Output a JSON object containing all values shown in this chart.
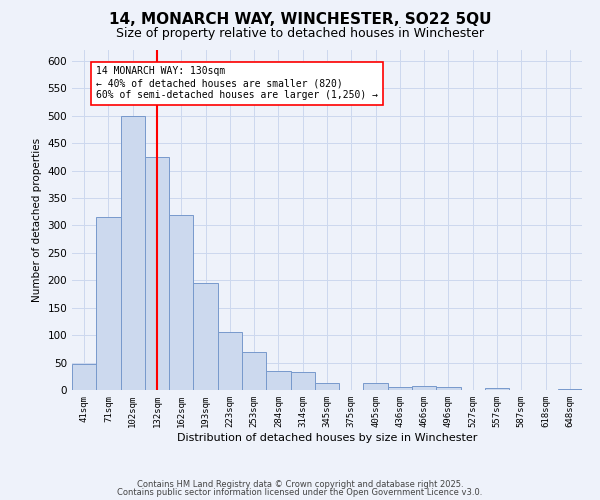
{
  "title": "14, MONARCH WAY, WINCHESTER, SO22 5QU",
  "subtitle": "Size of property relative to detached houses in Winchester",
  "xlabel": "Distribution of detached houses by size in Winchester",
  "ylabel": "Number of detached properties",
  "bar_labels": [
    "41sqm",
    "71sqm",
    "102sqm",
    "132sqm",
    "162sqm",
    "193sqm",
    "223sqm",
    "253sqm",
    "284sqm",
    "314sqm",
    "345sqm",
    "375sqm",
    "405sqm",
    "436sqm",
    "466sqm",
    "496sqm",
    "527sqm",
    "557sqm",
    "587sqm",
    "618sqm",
    "648sqm"
  ],
  "bar_values": [
    47,
    315,
    500,
    425,
    320,
    195,
    105,
    70,
    35,
    32,
    13,
    0,
    13,
    5,
    8,
    5,
    0,
    3,
    0,
    0,
    2
  ],
  "bar_color": "#ccd9ee",
  "bar_edge_color": "#7799cc",
  "vline_x": 3,
  "vline_color": "red",
  "annotation_text": "14 MONARCH WAY: 130sqm\n← 40% of detached houses are smaller (820)\n60% of semi-detached houses are larger (1,250) →",
  "annotation_box_color": "white",
  "annotation_box_edge": "red",
  "ylim": [
    0,
    620
  ],
  "yticks": [
    0,
    50,
    100,
    150,
    200,
    250,
    300,
    350,
    400,
    450,
    500,
    550,
    600
  ],
  "footer_line1": "Contains HM Land Registry data © Crown copyright and database right 2025.",
  "footer_line2": "Contains public sector information licensed under the Open Government Licence v3.0.",
  "bg_color": "#eef2fa",
  "grid_color": "#ccd8ee",
  "title_fontsize": 11,
  "subtitle_fontsize": 9
}
